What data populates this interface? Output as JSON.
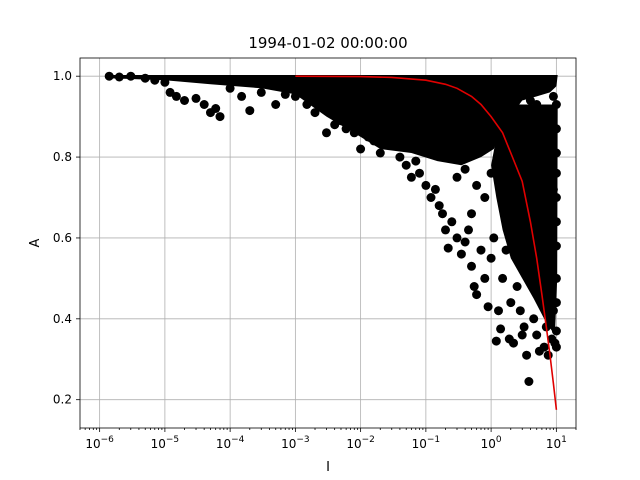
{
  "chart_data": {
    "type": "scatter",
    "title": "1994-01-02 00:00:00",
    "xlabel": "I",
    "ylabel": "A",
    "x_scale": "log",
    "xlim": [
      5e-07,
      20
    ],
    "ylim": [
      0.13,
      1.045
    ],
    "grid": true,
    "x_ticks": [
      {
        "value": 1e-06,
        "base": "10",
        "exp": "−6"
      },
      {
        "value": 1e-05,
        "base": "10",
        "exp": "−5"
      },
      {
        "value": 0.0001,
        "base": "10",
        "exp": "−4"
      },
      {
        "value": 0.001,
        "base": "10",
        "exp": "−3"
      },
      {
        "value": 0.01,
        "base": "10",
        "exp": "−2"
      },
      {
        "value": 0.1,
        "base": "10",
        "exp": "−1"
      },
      {
        "value": 1,
        "base": "10",
        "exp": "0"
      },
      {
        "value": 10,
        "base": "10",
        "exp": "1"
      }
    ],
    "y_ticks": [
      {
        "value": 0.2,
        "label": "0.2"
      },
      {
        "value": 0.4,
        "label": "0.4"
      },
      {
        "value": 0.6,
        "label": "0.6"
      },
      {
        "value": 0.8,
        "label": "0.8"
      },
      {
        "value": 1.0,
        "label": "1.0"
      }
    ],
    "scatter_color": "#000000",
    "curve_color": "#e00000",
    "points": [
      [
        1.4e-06,
        1.0
      ],
      [
        2e-06,
        0.998
      ],
      [
        3e-06,
        1.0
      ],
      [
        5e-06,
        0.995
      ],
      [
        7e-06,
        0.99
      ],
      [
        1e-05,
        0.985
      ],
      [
        1.2e-05,
        0.96
      ],
      [
        1.5e-05,
        0.95
      ],
      [
        2e-05,
        0.94
      ],
      [
        3e-05,
        0.945
      ],
      [
        4e-05,
        0.93
      ],
      [
        5e-05,
        0.91
      ],
      [
        6e-05,
        0.92
      ],
      [
        7e-05,
        0.9
      ],
      [
        0.0001,
        0.97
      ],
      [
        0.00015,
        0.95
      ],
      [
        0.0002,
        0.915
      ],
      [
        0.0003,
        0.96
      ],
      [
        0.0005,
        0.93
      ],
      [
        0.0007,
        0.955
      ],
      [
        0.001,
        0.95
      ],
      [
        0.0015,
        0.93
      ],
      [
        0.002,
        0.91
      ],
      [
        0.003,
        0.86
      ],
      [
        0.004,
        0.88
      ],
      [
        0.005,
        0.89
      ],
      [
        0.006,
        0.87
      ],
      [
        0.007,
        0.9
      ],
      [
        0.008,
        0.86
      ],
      [
        0.01,
        0.82
      ],
      [
        0.013,
        0.85
      ],
      [
        0.016,
        0.84
      ],
      [
        0.02,
        0.81
      ],
      [
        0.03,
        0.83
      ],
      [
        0.04,
        0.8
      ],
      [
        0.05,
        0.78
      ],
      [
        0.06,
        0.75
      ],
      [
        0.07,
        0.79
      ],
      [
        0.08,
        0.76
      ],
      [
        0.1,
        0.73
      ],
      [
        0.12,
        0.7
      ],
      [
        0.14,
        0.72
      ],
      [
        0.16,
        0.68
      ],
      [
        0.18,
        0.66
      ],
      [
        0.2,
        0.62
      ],
      [
        0.22,
        0.575
      ],
      [
        0.25,
        0.64
      ],
      [
        0.3,
        0.6
      ],
      [
        0.35,
        0.56
      ],
      [
        0.4,
        0.59
      ],
      [
        0.45,
        0.62
      ],
      [
        0.5,
        0.53
      ],
      [
        0.55,
        0.48
      ],
      [
        0.6,
        0.46
      ],
      [
        0.7,
        0.57
      ],
      [
        0.8,
        0.5
      ],
      [
        0.9,
        0.43
      ],
      [
        1.0,
        0.55
      ],
      [
        1.1,
        0.6
      ],
      [
        1.2,
        0.345
      ],
      [
        1.3,
        0.42
      ],
      [
        1.4,
        0.375
      ],
      [
        1.5,
        0.5
      ],
      [
        1.7,
        0.57
      ],
      [
        1.9,
        0.35
      ],
      [
        2.0,
        0.44
      ],
      [
        2.2,
        0.34
      ],
      [
        2.5,
        0.48
      ],
      [
        2.8,
        0.42
      ],
      [
        3.0,
        0.36
      ],
      [
        3.2,
        0.38
      ],
      [
        3.5,
        0.31
      ],
      [
        3.8,
        0.245
      ],
      [
        4.0,
        0.52
      ],
      [
        4.5,
        0.4
      ],
      [
        5.0,
        0.36
      ],
      [
        5.5,
        0.32
      ],
      [
        6.0,
        0.44
      ],
      [
        6.5,
        0.33
      ],
      [
        7.0,
        0.38
      ],
      [
        7.5,
        0.31
      ],
      [
        8.0,
        0.46
      ],
      [
        8.5,
        0.35
      ],
      [
        9.0,
        0.42
      ],
      [
        9.5,
        0.34
      ],
      [
        10.0,
        0.33
      ],
      [
        10.0,
        0.37
      ],
      [
        10.0,
        0.44
      ],
      [
        10.0,
        0.5
      ],
      [
        10.0,
        0.58
      ],
      [
        10.0,
        0.64
      ],
      [
        10.0,
        0.7
      ],
      [
        10.0,
        0.76
      ],
      [
        10.0,
        0.81
      ],
      [
        9.0,
        0.72
      ],
      [
        8.0,
        0.68
      ],
      [
        7.0,
        0.75
      ],
      [
        6.0,
        0.62
      ],
      [
        5.0,
        0.7
      ],
      [
        4.0,
        0.65
      ],
      [
        3.0,
        0.6
      ],
      [
        2.5,
        0.67
      ],
      [
        2.0,
        0.7
      ],
      [
        1.5,
        0.73
      ],
      [
        1.0,
        0.76
      ],
      [
        0.8,
        0.7
      ],
      [
        0.6,
        0.73
      ],
      [
        0.5,
        0.66
      ],
      [
        0.4,
        0.77
      ],
      [
        0.3,
        0.75
      ],
      [
        10.0,
        0.87
      ],
      [
        10.0,
        0.93
      ],
      [
        9.0,
        0.95
      ],
      [
        8.0,
        0.9
      ],
      [
        7.0,
        0.84
      ],
      [
        6.0,
        0.88
      ],
      [
        5.0,
        0.93
      ],
      [
        4.0,
        0.94
      ],
      [
        3.0,
        0.9
      ],
      [
        2.0,
        0.93
      ],
      [
        0.0015,
        0.975
      ],
      [
        0.0025,
        0.965
      ],
      [
        0.01,
        0.96
      ],
      [
        0.03,
        0.955
      ],
      [
        0.1,
        0.945
      ]
    ],
    "fit_curve": [
      [
        0.001,
        1.0
      ],
      [
        0.01,
        0.999
      ],
      [
        0.03,
        0.997
      ],
      [
        0.1,
        0.99
      ],
      [
        0.2,
        0.98
      ],
      [
        0.3,
        0.97
      ],
      [
        0.5,
        0.95
      ],
      [
        0.7,
        0.93
      ],
      [
        1.0,
        0.9
      ],
      [
        1.5,
        0.86
      ],
      [
        2.0,
        0.81
      ],
      [
        3.0,
        0.74
      ],
      [
        4.0,
        0.64
      ],
      [
        5.0,
        0.55
      ],
      [
        6.0,
        0.46
      ],
      [
        7.0,
        0.38
      ],
      [
        8.0,
        0.31
      ],
      [
        9.0,
        0.24
      ],
      [
        10.0,
        0.175
      ]
    ]
  }
}
